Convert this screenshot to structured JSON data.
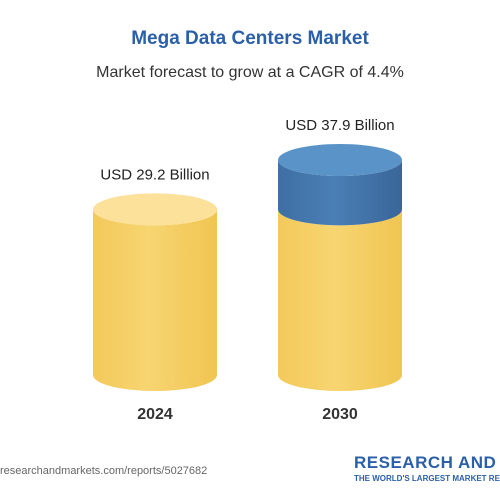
{
  "chart_data": {
    "type": "bar",
    "title": "Mega Data Centers Market",
    "subtitle": "Market forecast to grow at a CAGR of 4.4%",
    "categories": [
      "2024",
      "2030"
    ],
    "values": [
      29.2,
      37.9
    ],
    "value_labels": [
      "USD 29.2 Billion",
      "USD 37.9 Billion"
    ],
    "unit": "USD Billion",
    "style": "3d-cylinder",
    "colors": {
      "base": "#f7d571",
      "base_top": "#fbe19a",
      "growth": "#4a7fb5",
      "growth_top": "#5a93c8"
    },
    "grid": false,
    "legend": "none"
  },
  "footer": {
    "url": "researchandmarkets.com/reports/5027682",
    "brand": "RESEARCH AND MARKETS",
    "tagline": "THE WORLD'S LARGEST MARKET RESEARCH STORE"
  }
}
